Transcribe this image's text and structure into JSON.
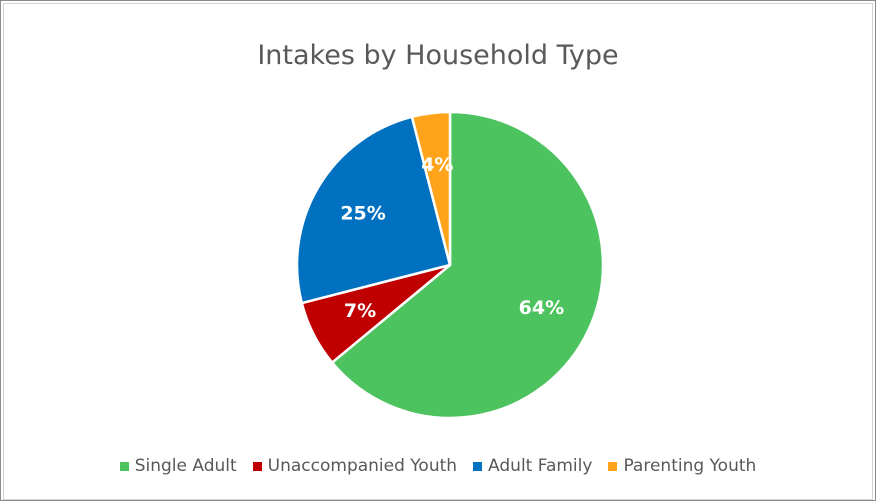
{
  "chart_data": {
    "type": "pie",
    "title": "Intakes by Household Type",
    "categories": [
      "Single Adult",
      "Unaccompanied Youth",
      "Adult Family",
      "Parenting Youth"
    ],
    "values": [
      64,
      7,
      25,
      4
    ],
    "value_labels": [
      "64%",
      "7%",
      "25%",
      "4%"
    ],
    "colors": [
      "#4cc35e",
      "#c00000",
      "#0070c0",
      "#ffa31a"
    ],
    "legend_position": "bottom"
  }
}
